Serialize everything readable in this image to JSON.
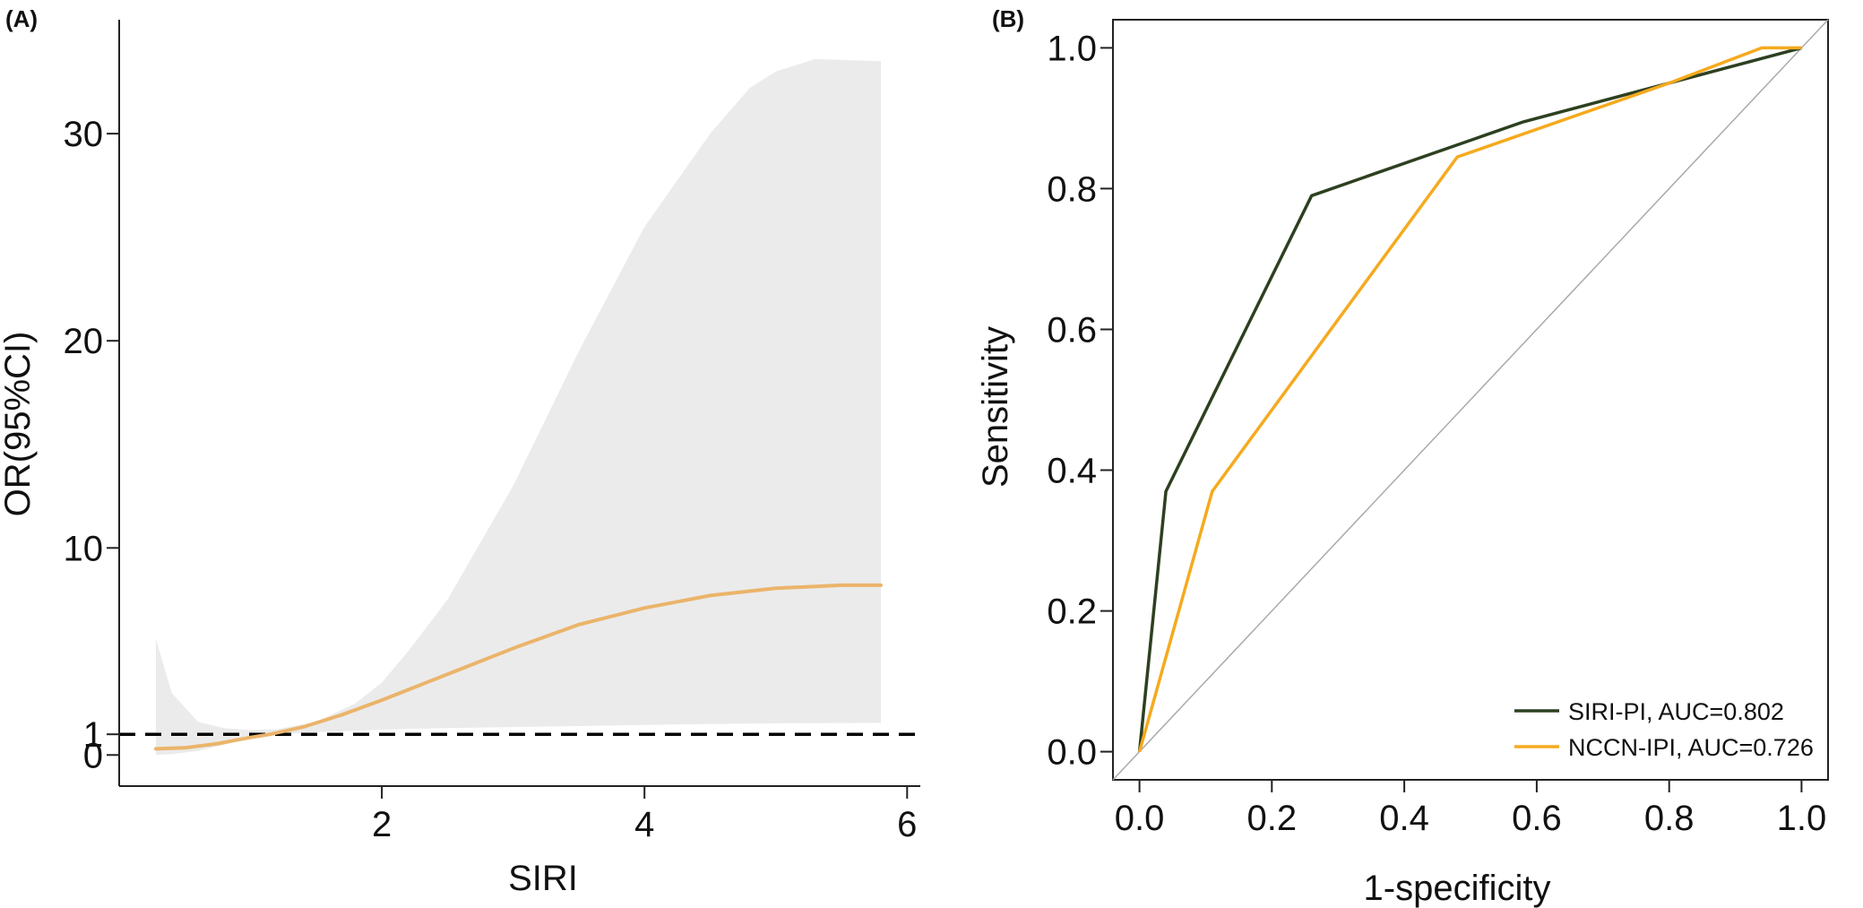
{
  "chart_data": [
    {
      "panel_label": "(A)",
      "type": "line",
      "xlabel": "SIRI",
      "ylabel": "OR(95%CI)",
      "x_ticks": [
        2,
        4,
        6
      ],
      "y_ticks": [
        0,
        1,
        10,
        20,
        30
      ],
      "xlim": [
        0.0,
        6.1
      ],
      "ylim": [
        -1.5,
        35.5
      ],
      "grid": false,
      "reference_line": {
        "y": 1,
        "style": "dashed"
      },
      "series": [
        {
          "role": "estimate",
          "x": [
            0.28,
            0.5,
            0.75,
            1.0,
            1.15,
            1.4,
            1.7,
            2.0,
            2.5,
            3.0,
            3.5,
            4.0,
            4.5,
            5.0,
            5.5,
            5.8
          ],
          "y": [
            0.3,
            0.35,
            0.55,
            0.85,
            1.0,
            1.35,
            1.95,
            2.65,
            3.9,
            5.15,
            6.3,
            7.1,
            7.7,
            8.05,
            8.2,
            8.2
          ],
          "color": "#ebb46a"
        },
        {
          "role": "confidence_interval",
          "x": [
            0.28,
            0.4,
            0.6,
            0.8,
            1.0,
            1.2,
            1.5,
            1.8,
            2.0,
            2.2,
            2.5,
            3.0,
            3.5,
            4.0,
            4.5,
            4.8,
            5.0,
            5.3,
            5.8
          ],
          "upper": [
            5.6,
            3.0,
            1.6,
            1.3,
            1.2,
            1.25,
            1.6,
            2.5,
            3.5,
            5.0,
            7.5,
            13.0,
            19.5,
            25.5,
            30.0,
            32.2,
            33.0,
            33.6,
            33.5
          ],
          "lower": [
            0.0,
            0.05,
            0.2,
            0.5,
            0.8,
            1.0,
            1.1,
            1.18,
            1.22,
            1.26,
            1.3,
            1.35,
            1.4,
            1.45,
            1.5,
            1.52,
            1.53,
            1.54,
            1.55
          ],
          "color": "#ebebeb"
        }
      ]
    },
    {
      "panel_label": "(B)",
      "type": "line",
      "xlabel": "1-specificity",
      "ylabel": "Sensitivity",
      "x_ticks": [
        "0.0",
        "0.2",
        "0.4",
        "0.6",
        "0.8",
        "1.0"
      ],
      "y_ticks": [
        "0.0",
        "0.2",
        "0.4",
        "0.6",
        "0.8",
        "1.0"
      ],
      "xlim": [
        -0.04,
        1.04
      ],
      "ylim": [
        -0.04,
        1.04
      ],
      "grid": false,
      "legend_position": "bottom-right",
      "diagonal": {
        "color": "#aaaaaa"
      },
      "series": [
        {
          "name": "SIRI-PI, AUC=0.802",
          "x": [
            0.0,
            0.04,
            0.26,
            0.58,
            0.8,
            1.0
          ],
          "y": [
            0.0,
            0.37,
            0.79,
            0.895,
            0.95,
            1.0
          ],
          "color": "#2d4020"
        },
        {
          "name": "NCCN-IPI, AUC=0.726",
          "x": [
            0.0,
            0.11,
            0.48,
            0.8,
            0.94,
            0.98,
            1.0
          ],
          "y": [
            0.0,
            0.37,
            0.845,
            0.95,
            1.0,
            1.0,
            1.0
          ],
          "color": "#f5aa1e"
        }
      ]
    }
  ]
}
